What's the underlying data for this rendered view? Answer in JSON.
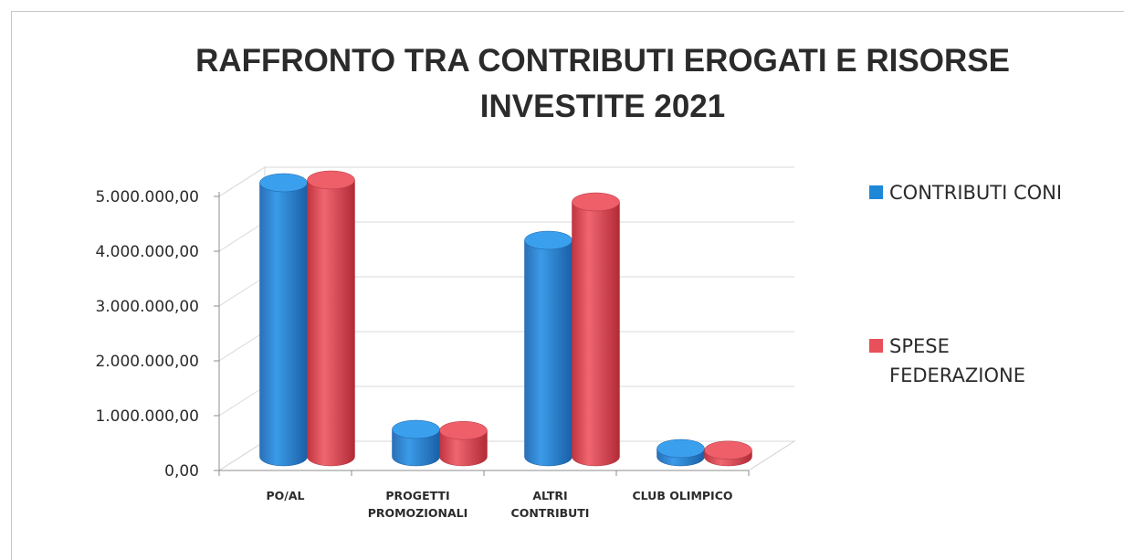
{
  "chart_data": {
    "type": "bar",
    "title": [
      "RAFFRONTO TRA CONTRIBUTI EROGATI E RISORSE",
      "INVESTITE 2021"
    ],
    "categories": [
      [
        "PO/AL"
      ],
      [
        "PROGETTI",
        "PROMOZIONALI"
      ],
      [
        "ALTRI",
        "CONTRIBUTI"
      ],
      [
        "CLUB OLIMPICO"
      ]
    ],
    "series": [
      {
        "name": "CONTRIBUTI CONI",
        "color": "#1e88d8",
        "values": [
          5000000,
          500000,
          3950000,
          150000
        ]
      },
      {
        "name": [
          "SPESE",
          "FEDERAZIONE"
        ],
        "color": "#e8505a",
        "values": [
          5050000,
          480000,
          4650000,
          120000
        ]
      }
    ],
    "yticks": [
      "0,00",
      "1.000.000,00",
      "2.000.000,00",
      "3.000.000,00",
      "4.000.000,00",
      "5.000.000,00"
    ],
    "ylim": [
      0,
      5000000
    ],
    "xlabel": "",
    "ylabel": "",
    "grid": true,
    "legend_position": "right",
    "style": "3d-cylinder"
  }
}
